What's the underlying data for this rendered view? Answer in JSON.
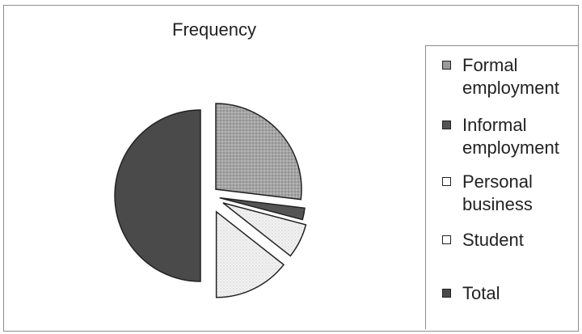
{
  "chart_data": {
    "type": "pie",
    "title": "Frequency",
    "legend_position": "right",
    "slices": [
      {
        "label_lines": [
          "Formal",
          "employment"
        ],
        "value": 26.9,
        "color": "#a5a5a5",
        "pattern": "dots",
        "legend_swatch": "#9a9a9a"
      },
      {
        "label_lines": [
          "Informal",
          "employment"
        ],
        "value": 2.2,
        "color": "#555555",
        "pattern": "none",
        "legend_swatch": "#555555"
      },
      {
        "label_lines": [
          "Personal",
          "business"
        ],
        "value": 6.5,
        "color": "#f0f0f0",
        "pattern": "dots",
        "legend_swatch": "#ffffff"
      },
      {
        "label_lines": [
          "Student"
        ],
        "value": 14.4,
        "color": "#f4f4f4",
        "pattern": "dots",
        "legend_swatch": "#ffffff"
      },
      {
        "label_lines": [
          "Total"
        ],
        "value": 50.0,
        "color": "#4a4a4a",
        "pattern": "none",
        "legend_swatch": "#4a4a4a"
      }
    ]
  }
}
